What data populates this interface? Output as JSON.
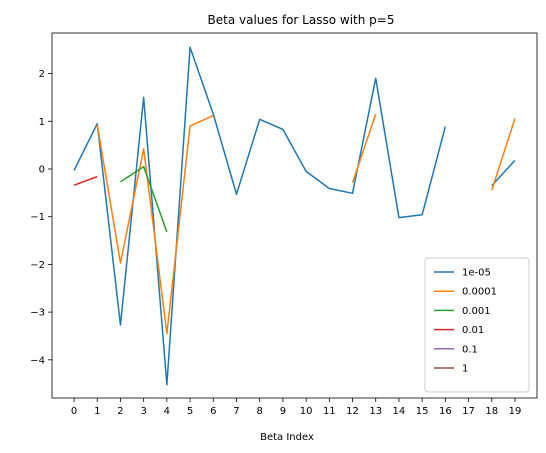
{
  "chart_data": {
    "type": "line",
    "title": "Beta values for Lasso with p=5",
    "xlabel": "Beta Index",
    "ylabel": "",
    "x": [
      0,
      1,
      2,
      3,
      4,
      5,
      6,
      7,
      8,
      9,
      10,
      11,
      12,
      13,
      14,
      15,
      16,
      17,
      18,
      19
    ],
    "xlim": [
      -0.95,
      19.95
    ],
    "ylim": [
      -4.8,
      2.85
    ],
    "yticks": [
      -4,
      -3,
      -2,
      -1,
      0,
      1,
      2
    ],
    "grid": false,
    "legend_position": "lower-right",
    "series": [
      {
        "name": "1e-05",
        "color": "#1f77b4",
        "values": [
          -0.03,
          0.95,
          -3.27,
          1.5,
          -4.52,
          2.55,
          1.15,
          -0.53,
          1.04,
          0.83,
          -0.05,
          -0.41,
          -0.51,
          1.9,
          -1.02,
          -0.96,
          0.89,
          null,
          -0.35,
          0.18
        ]
      },
      {
        "name": "0.0001",
        "color": "#ff7f0e",
        "values": [
          null,
          0.93,
          -1.97,
          0.42,
          -3.45,
          0.9,
          1.12,
          null,
          null,
          null,
          null,
          null,
          -0.29,
          1.15,
          null,
          null,
          null,
          null,
          -0.45,
          1.06
        ]
      },
      {
        "name": "0.001",
        "color": "#2ca02c",
        "values": [
          null,
          null,
          -0.27,
          0.05,
          -1.32,
          null,
          null,
          null,
          null,
          null,
          null,
          null,
          null,
          null,
          null,
          null,
          null,
          null,
          null,
          null
        ]
      },
      {
        "name": "0.01",
        "color": "#d62728",
        "values": [
          -0.34,
          -0.16,
          null,
          null,
          null,
          null,
          null,
          null,
          null,
          null,
          null,
          null,
          null,
          null,
          null,
          null,
          null,
          null,
          null,
          null
        ]
      },
      {
        "name": "0.1",
        "color": "#9467bd",
        "values": [
          null,
          null,
          null,
          null,
          null,
          null,
          null,
          null,
          null,
          null,
          null,
          null,
          null,
          null,
          null,
          null,
          null,
          null,
          null,
          null
        ]
      },
      {
        "name": "1",
        "color": "#8c564b",
        "values": [
          null,
          null,
          null,
          null,
          null,
          null,
          null,
          null,
          null,
          null,
          null,
          null,
          null,
          null,
          null,
          null,
          null,
          null,
          null,
          null
        ]
      }
    ]
  }
}
